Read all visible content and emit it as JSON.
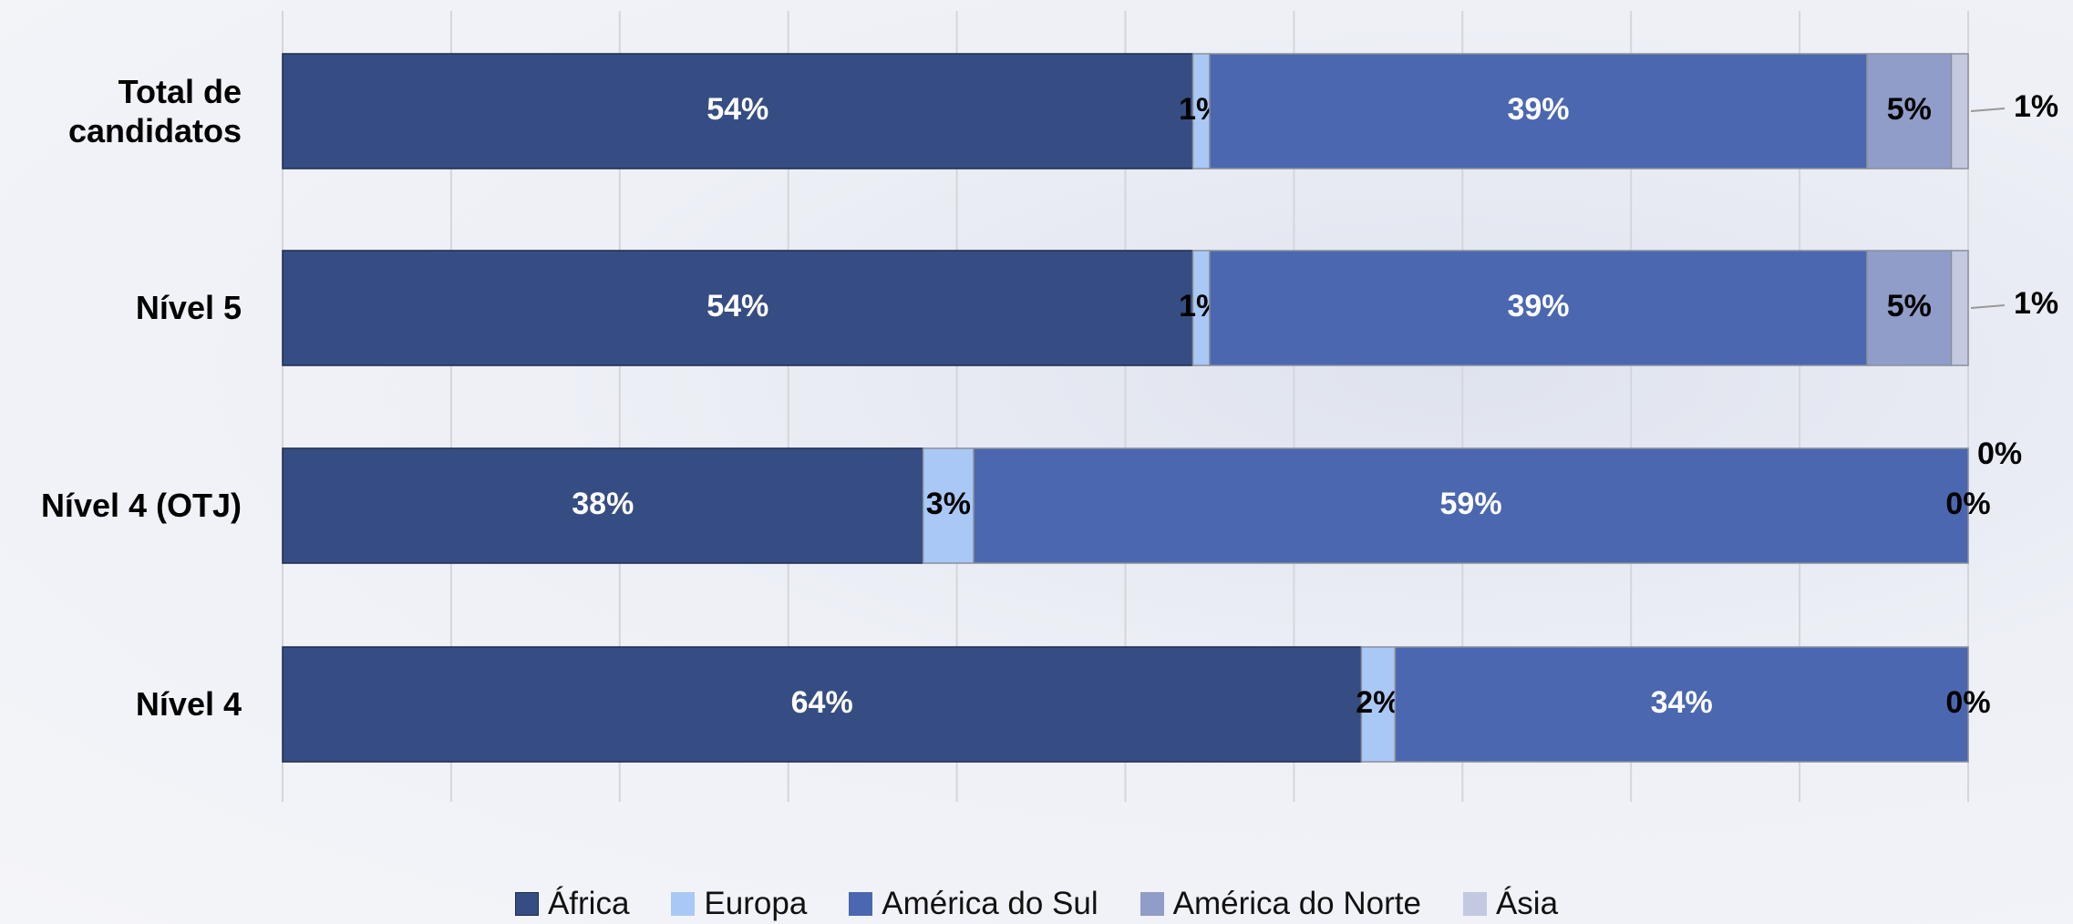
{
  "chart_data": {
    "type": "stacked_bar_horizontal",
    "categories": [
      "Total de candidatos",
      "Nível 5",
      "Nível 4 (OTJ)",
      "Nível 4"
    ],
    "series": [
      {
        "name": "África",
        "color": "#354d82",
        "values": [
          54,
          54,
          38,
          64
        ]
      },
      {
        "name": "Europa",
        "color": "#a9c8f5",
        "values": [
          1,
          1,
          3,
          2
        ]
      },
      {
        "name": "América do Sul",
        "color": "#4a67b0",
        "values": [
          39,
          39,
          59,
          34
        ]
      },
      {
        "name": "América do Norte",
        "color": "#8f9dc8",
        "values": [
          5,
          5,
          0,
          0
        ]
      },
      {
        "name": "Ásia",
        "color": "#c2c9e0",
        "values": [
          1,
          1,
          0,
          null
        ]
      }
    ],
    "value_labels": [
      [
        "54%",
        "54%",
        "38%",
        "64%"
      ],
      [
        "1%",
        "1%",
        "3%",
        "2%"
      ],
      [
        "39%",
        "39%",
        "59%",
        "34%"
      ],
      [
        "5%",
        "5%",
        "0%",
        "0%"
      ],
      [
        "1%",
        "1%",
        "0%",
        null
      ]
    ],
    "xlim": [
      0,
      100
    ],
    "xticks": [
      0,
      10,
      20,
      30,
      40,
      50,
      60,
      70,
      80,
      90,
      100
    ],
    "grid": true,
    "legend": "bottom"
  }
}
